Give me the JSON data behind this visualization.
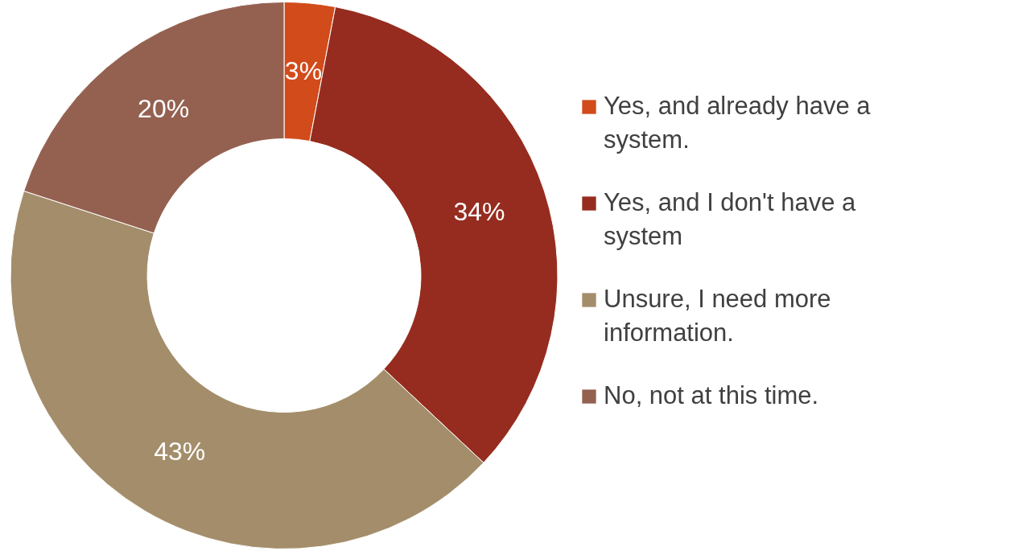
{
  "chart_data": {
    "type": "donut",
    "categories": [
      "Yes, and already have a system.",
      "Yes, and I don't have a system",
      "Unsure, I need more information.",
      "No, not at this time."
    ],
    "values": [
      3,
      34,
      43,
      20
    ],
    "colors": [
      "#d24b1b",
      "#962c1f",
      "#a48d6a",
      "#946151"
    ],
    "value_labels": [
      "3%",
      "34%",
      "43%",
      "20%"
    ],
    "legend": "right"
  }
}
